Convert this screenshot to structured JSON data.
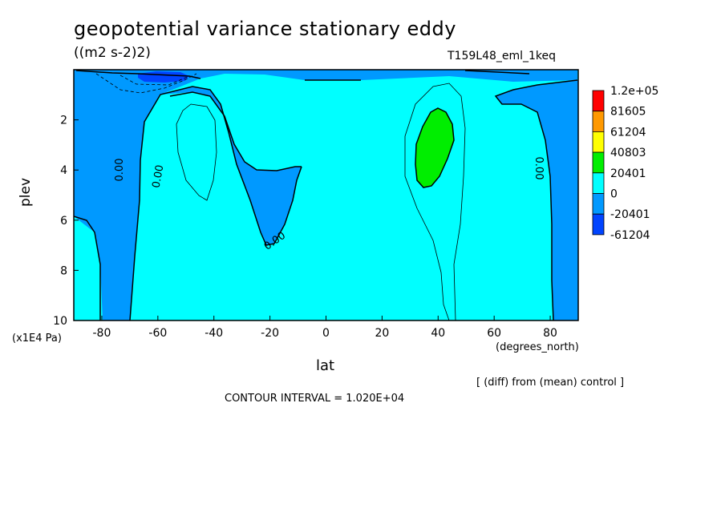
{
  "chart_data": {
    "type": "heatmap",
    "title": "geopotential variance stationary eddy",
    "units": "((m2 s-2)2)",
    "case_name": "T159L48_eml_1keq",
    "xlabel": "lat",
    "xunit": "(degrees_north)",
    "ylabel": "plev",
    "yunit": "(x1E4 Pa)",
    "xlim": [
      -90,
      90
    ],
    "ylim": [
      10,
      0
    ],
    "x_ticks": [
      -80,
      -60,
      -40,
      -20,
      0,
      20,
      40,
      60,
      80
    ],
    "x_tick_labels": [
      "-80",
      "-60",
      "-40",
      "-20",
      "0",
      "20",
      "40",
      "60",
      "80"
    ],
    "y_ticks": [
      2,
      4,
      6,
      8,
      10
    ],
    "y_tick_labels": [
      "2",
      "4",
      "6",
      "8",
      "10"
    ],
    "colorbar": {
      "labels": [
        "1.2e+05",
        "81605",
        "61204",
        "40803",
        "20401",
        "0",
        "-20401",
        "-61204"
      ],
      "colors": [
        "#ff0000",
        "#ff9900",
        "#ffff00",
        "#00ee00",
        "#00ffff",
        "#0099ff",
        "#0044ff"
      ]
    },
    "contour_labels": [
      "0.00",
      "0.00",
      "0.00",
      "0.00"
    ],
    "note": "[ (diff) from (mean) control ]",
    "contour_interval": "CONTOUR INTERVAL = 1.020E+04"
  }
}
